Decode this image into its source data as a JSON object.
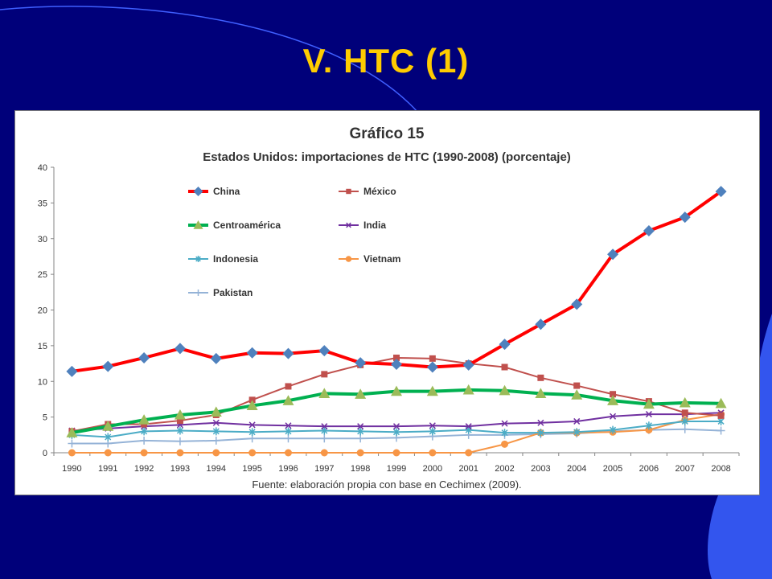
{
  "slide": {
    "title": "V. HTC (1)",
    "colors": {
      "background": "#00007a",
      "title": "#ffcc00",
      "decor": "#3355ee"
    }
  },
  "chart_data": {
    "type": "line",
    "title": "Gráfico 15",
    "subtitle": "Estados Unidos: importaciones de HTC (1990-2008) (porcentaje)",
    "source": "Fuente: elaboración propia con base en Cechimex (2009).",
    "xlabel": "",
    "ylabel": "",
    "ylim": [
      0,
      40
    ],
    "yticks": [
      0,
      5,
      10,
      15,
      20,
      25,
      30,
      35,
      40
    ],
    "grid": false,
    "legend_position": "top-left, inside plot",
    "x": [
      "1990",
      "1991",
      "1992",
      "1993",
      "1994",
      "1995",
      "1996",
      "1997",
      "1998",
      "1999",
      "2000",
      "2001",
      "2002",
      "2003",
      "2004",
      "2005",
      "2006",
      "2007",
      "2008"
    ],
    "series": [
      {
        "name": "China",
        "color": "#ff0000",
        "marker": "diamond",
        "marker_color": "#4f81bd",
        "width": 4,
        "values": [
          11.4,
          12.1,
          13.3,
          14.6,
          13.2,
          14.0,
          13.9,
          14.3,
          12.6,
          12.4,
          12.0,
          12.3,
          15.2,
          18.0,
          20.8,
          27.8,
          31.1,
          33.0,
          36.6
        ]
      },
      {
        "name": "México",
        "color": "#c0504d",
        "marker": "square",
        "marker_color": "#c0504d",
        "width": 2,
        "values": [
          3.0,
          4.0,
          4.0,
          4.5,
          5.3,
          7.4,
          9.3,
          11.0,
          12.3,
          13.3,
          13.2,
          12.5,
          12.0,
          10.5,
          9.4,
          8.2,
          7.2,
          5.6,
          5.2
        ]
      },
      {
        "name": "Centroamérica",
        "color": "#00b050",
        "marker": "triangle",
        "marker_color": "#9bbb59",
        "width": 4,
        "values": [
          2.8,
          3.7,
          4.6,
          5.3,
          5.7,
          6.6,
          7.3,
          8.3,
          8.2,
          8.6,
          8.6,
          8.8,
          8.7,
          8.3,
          8.1,
          7.3,
          6.8,
          7.0,
          6.9
        ]
      },
      {
        "name": "India",
        "color": "#7030a0",
        "marker": "x",
        "marker_color": "#7030a0",
        "width": 2,
        "values": [
          3.1,
          3.4,
          3.7,
          3.9,
          4.2,
          3.9,
          3.8,
          3.7,
          3.7,
          3.7,
          3.8,
          3.7,
          4.1,
          4.2,
          4.4,
          5.1,
          5.4,
          5.4,
          5.6
        ]
      },
      {
        "name": "Indonesia",
        "color": "#4bacc6",
        "marker": "star",
        "marker_color": "#4bacc6",
        "width": 2,
        "values": [
          2.5,
          2.2,
          3.0,
          3.1,
          3.0,
          2.9,
          3.0,
          3.1,
          3.0,
          2.9,
          3.0,
          3.2,
          2.8,
          2.8,
          2.9,
          3.2,
          3.8,
          4.4,
          4.4
        ]
      },
      {
        "name": "Vietnam",
        "color": "#f79646",
        "marker": "circle",
        "marker_color": "#f79646",
        "width": 2,
        "values": [
          0.0,
          0.0,
          0.0,
          0.0,
          0.0,
          0.0,
          0.0,
          0.0,
          0.0,
          0.0,
          0.0,
          0.0,
          1.2,
          2.8,
          2.8,
          2.9,
          3.2,
          4.6,
          5.4
        ]
      },
      {
        "name": "Pakistan",
        "color": "#95b3d7",
        "marker": "plus",
        "marker_color": "#95b3d7",
        "width": 2,
        "values": [
          1.3,
          1.3,
          1.7,
          1.6,
          1.7,
          2.0,
          2.0,
          2.0,
          2.0,
          2.1,
          2.3,
          2.5,
          2.5,
          2.6,
          2.7,
          3.0,
          3.2,
          3.3,
          3.1
        ]
      }
    ]
  }
}
